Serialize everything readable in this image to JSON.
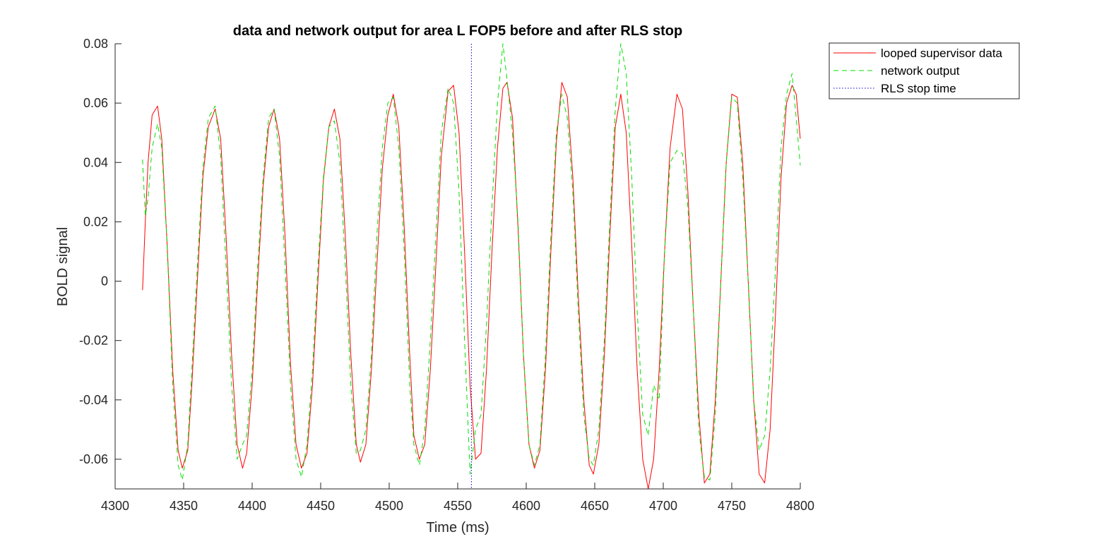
{
  "chart_data": {
    "type": "line",
    "title": "data and network output for area L FOP5 before and after RLS stop",
    "xlabel": "Time (ms)",
    "ylabel": "BOLD signal",
    "xlim": [
      4300,
      4800
    ],
    "ylim": [
      -0.07,
      0.08
    ],
    "xticks": [
      4300,
      4350,
      4400,
      4450,
      4500,
      4550,
      4600,
      4650,
      4700,
      4750,
      4800
    ],
    "yticks": [
      -0.06,
      -0.04,
      -0.02,
      0,
      0.02,
      0.04,
      0.06,
      0.08
    ],
    "xtick_labels": [
      "4300",
      "4350",
      "4400",
      "4450",
      "4500",
      "4550",
      "4600",
      "4650",
      "4700",
      "4750",
      "4800"
    ],
    "ytick_labels": [
      "-0.06",
      "-0.04",
      "-0.02",
      "0",
      "0.02",
      "0.04",
      "0.06",
      "0.08"
    ],
    "grid": false,
    "legend_position": "outside-top-right",
    "rls_stop_time": 4560,
    "series": [
      {
        "name": "looped supervisor data",
        "color": "#ff0000",
        "style": "solid",
        "x": [
          4320,
          4322,
          4324,
          4327,
          4331,
          4334,
          4338,
          4342,
          4346,
          4349,
          4353,
          4356,
          4360,
          4364,
          4368,
          4373,
          4377,
          4381,
          4385,
          4389,
          4393,
          4396,
          4400,
          4404,
          4408,
          4412,
          4416,
          4420,
          4424,
          4428,
          4432,
          4436,
          4440,
          4444,
          4448,
          4452,
          4456,
          4460,
          4464,
          4468,
          4472,
          4476,
          4479,
          4483,
          4487,
          4491,
          4495,
          4499,
          4503,
          4507,
          4511,
          4515,
          4518,
          4522,
          4526,
          4530,
          4534,
          4538,
          4543,
          4547,
          4551,
          4555,
          4559,
          4563,
          4567,
          4571,
          4575,
          4579,
          4583,
          4586,
          4590,
          4594,
          4598,
          4602,
          4606,
          4610,
          4614,
          4618,
          4622,
          4626,
          4630,
          4634,
          4638,
          4642,
          4646,
          4649,
          4653,
          4657,
          4661,
          4665,
          4669,
          4673,
          4677,
          4681,
          4685,
          4689,
          4693,
          4697,
          4701,
          4705,
          4710,
          4714,
          4718,
          4722,
          4726,
          4730,
          4734,
          4738,
          4742,
          4746,
          4750,
          4754,
          4758,
          4762,
          4766,
          4770,
          4774,
          4778,
          4782,
          4786,
          4790,
          4794,
          4797,
          4800
        ],
        "y": [
          -0.003,
          0.02,
          0.04,
          0.056,
          0.059,
          0.048,
          0.012,
          -0.03,
          -0.057,
          -0.063,
          -0.057,
          -0.035,
          0.0,
          0.035,
          0.052,
          0.058,
          0.048,
          0.015,
          -0.025,
          -0.055,
          -0.063,
          -0.058,
          -0.035,
          0.0,
          0.032,
          0.052,
          0.058,
          0.048,
          0.015,
          -0.028,
          -0.055,
          -0.063,
          -0.058,
          -0.035,
          0.0,
          0.034,
          0.052,
          0.058,
          0.048,
          0.015,
          -0.025,
          -0.055,
          -0.061,
          -0.055,
          -0.03,
          0.005,
          0.038,
          0.056,
          0.063,
          0.052,
          0.018,
          -0.025,
          -0.052,
          -0.06,
          -0.055,
          -0.03,
          0.005,
          0.042,
          0.064,
          0.066,
          0.05,
          0.01,
          -0.035,
          -0.06,
          -0.058,
          -0.03,
          0.01,
          0.045,
          0.065,
          0.067,
          0.055,
          0.018,
          -0.025,
          -0.055,
          -0.063,
          -0.057,
          -0.03,
          0.01,
          0.047,
          0.067,
          0.062,
          0.035,
          -0.005,
          -0.04,
          -0.062,
          -0.065,
          -0.055,
          -0.025,
          0.015,
          0.052,
          0.063,
          0.05,
          0.012,
          -0.03,
          -0.06,
          -0.07,
          -0.06,
          -0.03,
          0.01,
          0.045,
          0.063,
          0.058,
          0.03,
          -0.01,
          -0.045,
          -0.068,
          -0.065,
          -0.04,
          0.0,
          0.04,
          0.063,
          0.062,
          0.04,
          0.0,
          -0.04,
          -0.065,
          -0.068,
          -0.05,
          -0.01,
          0.035,
          0.06,
          0.066,
          0.063,
          0.048
        ]
      },
      {
        "name": "network output",
        "color": "#00e000",
        "style": "dashed",
        "x": [
          4320,
          4322,
          4324,
          4327,
          4331,
          4334,
          4338,
          4342,
          4346,
          4349,
          4353,
          4356,
          4360,
          4364,
          4368,
          4373,
          4377,
          4381,
          4385,
          4389,
          4393,
          4396,
          4400,
          4404,
          4408,
          4412,
          4416,
          4420,
          4424,
          4428,
          4432,
          4436,
          4440,
          4444,
          4448,
          4452,
          4456,
          4460,
          4464,
          4468,
          4472,
          4476,
          4479,
          4483,
          4487,
          4491,
          4495,
          4499,
          4503,
          4507,
          4511,
          4515,
          4518,
          4522,
          4526,
          4530,
          4534,
          4538,
          4543,
          4547,
          4551,
          4555,
          4559,
          4563,
          4567,
          4571,
          4575,
          4579,
          4583,
          4586,
          4590,
          4594,
          4598,
          4602,
          4606,
          4610,
          4614,
          4618,
          4622,
          4626,
          4630,
          4634,
          4638,
          4642,
          4646,
          4649,
          4653,
          4657,
          4661,
          4665,
          4669,
          4673,
          4677,
          4681,
          4685,
          4689,
          4693,
          4697,
          4701,
          4705,
          4710,
          4714,
          4718,
          4722,
          4726,
          4730,
          4734,
          4738,
          4742,
          4746,
          4750,
          4754,
          4758,
          4762,
          4766,
          4770,
          4774,
          4778,
          4782,
          4786,
          4790,
          4794,
          4797,
          4800
        ],
        "y": [
          0.041,
          0.022,
          0.028,
          0.045,
          0.053,
          0.045,
          0.012,
          -0.035,
          -0.062,
          -0.067,
          -0.055,
          -0.03,
          0.005,
          0.038,
          0.055,
          0.059,
          0.042,
          0.005,
          -0.035,
          -0.06,
          -0.055,
          -0.052,
          -0.03,
          0.005,
          0.035,
          0.055,
          0.058,
          0.042,
          0.005,
          -0.035,
          -0.06,
          -0.066,
          -0.055,
          -0.03,
          0.005,
          0.035,
          0.052,
          0.054,
          0.04,
          0.005,
          -0.035,
          -0.058,
          -0.057,
          -0.05,
          -0.025,
          0.015,
          0.045,
          0.06,
          0.062,
          0.045,
          0.01,
          -0.035,
          -0.055,
          -0.062,
          -0.05,
          -0.02,
          0.015,
          0.05,
          0.065,
          0.06,
          0.03,
          -0.02,
          -0.065,
          -0.05,
          -0.045,
          -0.015,
          0.025,
          0.06,
          0.08,
          0.068,
          0.05,
          0.02,
          -0.025,
          -0.055,
          -0.062,
          -0.055,
          -0.025,
          0.015,
          0.05,
          0.063,
          0.055,
          0.03,
          -0.01,
          -0.045,
          -0.06,
          -0.062,
          -0.05,
          -0.02,
          0.02,
          0.058,
          0.08,
          0.07,
          0.035,
          -0.01,
          -0.045,
          -0.052,
          -0.035,
          -0.04,
          0.01,
          0.04,
          0.044,
          0.043,
          0.025,
          -0.01,
          -0.05,
          -0.066,
          -0.067,
          -0.045,
          0.0,
          0.04,
          0.062,
          0.06,
          0.035,
          0.0,
          -0.04,
          -0.057,
          -0.052,
          -0.03,
          0.005,
          0.045,
          0.063,
          0.07,
          0.055,
          0.039
        ]
      }
    ],
    "legend_entries": [
      {
        "label": "looped supervisor data",
        "color": "#ff0000",
        "style": "solid"
      },
      {
        "label": "network output",
        "color": "#00e000",
        "style": "dashed"
      },
      {
        "label": "RLS stop time",
        "color": "#0000c8",
        "style": "dotted"
      }
    ]
  }
}
